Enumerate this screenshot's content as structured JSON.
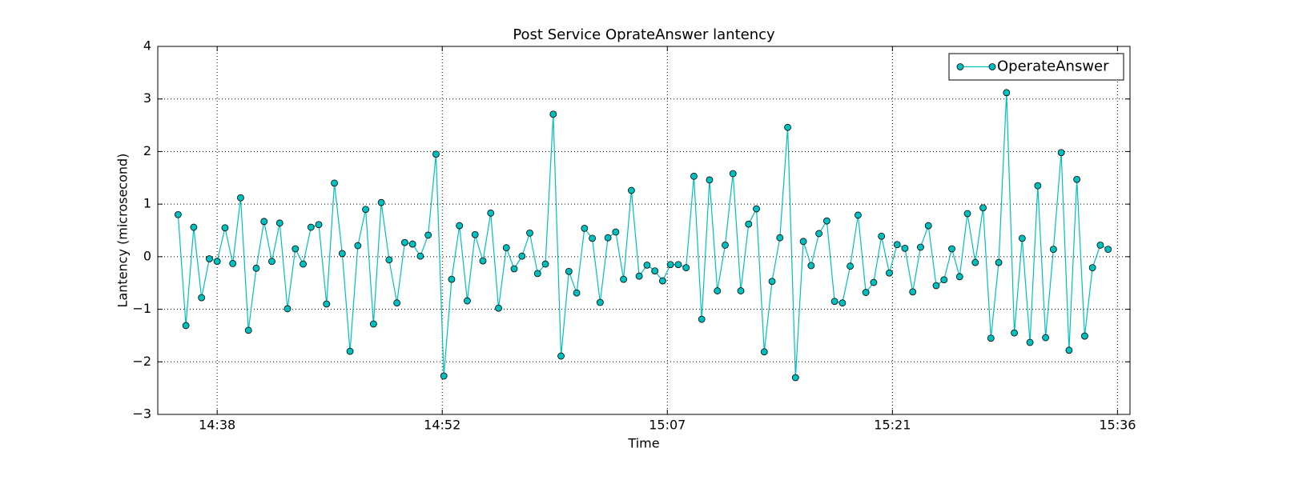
{
  "chart_data": {
    "type": "line",
    "title": "Post Service OprateAnswer lantency",
    "xlabel": "Time",
    "ylabel": "Lantency (microsecond)",
    "x": [
      875.5,
      876,
      876.5,
      877,
      877.5,
      878,
      878.5,
      879,
      879.5,
      880,
      880.5,
      881,
      881.5,
      882,
      882.5,
      883,
      883.5,
      884,
      884.5,
      885,
      885.5,
      886,
      886.5,
      887,
      887.5,
      888,
      888.5,
      889,
      889.5,
      890,
      890.5,
      891,
      891.5,
      892,
      892.5,
      893,
      893.5,
      894,
      894.5,
      895,
      895.5,
      896,
      896.5,
      897,
      897.5,
      898,
      898.5,
      899,
      899.5,
      900,
      900.5,
      901,
      901.5,
      902,
      902.5,
      903,
      903.5,
      904,
      904.5,
      905,
      905.5,
      906,
      906.5,
      907,
      907.5,
      908,
      908.5,
      909,
      909.5,
      910,
      910.5,
      911,
      911.5,
      912,
      912.5,
      913,
      913.5,
      914,
      914.5,
      915,
      915.5,
      916,
      916.5,
      917,
      917.5,
      918,
      918.5,
      919,
      919.5,
      920,
      920.5,
      921,
      921.5,
      922,
      922.5,
      923,
      923.5,
      924,
      924.5,
      925,
      925.5,
      926,
      926.5,
      927,
      927.5,
      928,
      928.5,
      929,
      929.5,
      930,
      930.5,
      931,
      931.5,
      932,
      932.5,
      933,
      933.5,
      934,
      934.5,
      935
    ],
    "series": [
      {
        "name": "OperateAnswer",
        "color": "#00bfbf",
        "values": [
          0.8,
          -1.31,
          0.56,
          -0.78,
          -0.04,
          -0.09,
          0.55,
          -0.13,
          1.12,
          -1.4,
          -0.22,
          0.67,
          -0.09,
          0.64,
          -0.99,
          0.15,
          -0.14,
          0.56,
          0.61,
          -0.9,
          1.4,
          0.06,
          -1.8,
          0.21,
          0.9,
          -1.28,
          1.03,
          -0.06,
          -0.88,
          0.27,
          0.24,
          0.01,
          0.41,
          1.95,
          -2.27,
          -0.43,
          0.59,
          -0.84,
          0.42,
          -0.08,
          0.83,
          -0.98,
          0.17,
          -0.23,
          0.01,
          0.45,
          -0.32,
          -0.14,
          2.71,
          -1.89,
          -0.28,
          -0.69,
          0.54,
          0.35,
          -0.87,
          0.36,
          0.47,
          -0.43,
          1.26,
          -0.37,
          -0.16,
          -0.27,
          -0.46,
          -0.15,
          -0.15,
          -0.21,
          1.53,
          -1.19,
          1.46,
          -0.65,
          0.22,
          1.58,
          -0.65,
          0.62,
          0.91,
          -1.81,
          -0.47,
          0.36,
          2.46,
          -2.3,
          0.29,
          -0.17,
          0.44,
          0.68,
          -0.85,
          -0.88,
          -0.18,
          0.79,
          -0.68,
          -0.49,
          0.39,
          -0.31,
          0.23,
          0.16,
          -0.67,
          0.18,
          0.59,
          -0.55,
          -0.44,
          0.15,
          -0.38,
          0.82,
          -0.11,
          0.93,
          -1.55,
          -0.11,
          3.12,
          -1.45,
          0.35,
          -1.63,
          1.35,
          -1.54,
          0.14,
          1.98,
          -1.78,
          1.47,
          -1.51,
          -0.21,
          0.22,
          0.14
        ]
      }
    ],
    "xlim": [
      874.2,
      936.4
    ],
    "xticks": [
      {
        "value": 878,
        "label": "14:38"
      },
      {
        "value": 892.4,
        "label": "14:52"
      },
      {
        "value": 906.8,
        "label": "15:07"
      },
      {
        "value": 921.2,
        "label": "15:21"
      },
      {
        "value": 935.6,
        "label": "15:36"
      }
    ],
    "ylim": [
      -3,
      4
    ],
    "yticks": [
      {
        "value": -3,
        "label": "−3"
      },
      {
        "value": -2,
        "label": "−2"
      },
      {
        "value": -1,
        "label": "−1"
      },
      0,
      1,
      2,
      3,
      4
    ],
    "grid": true,
    "legend": "upper right"
  }
}
